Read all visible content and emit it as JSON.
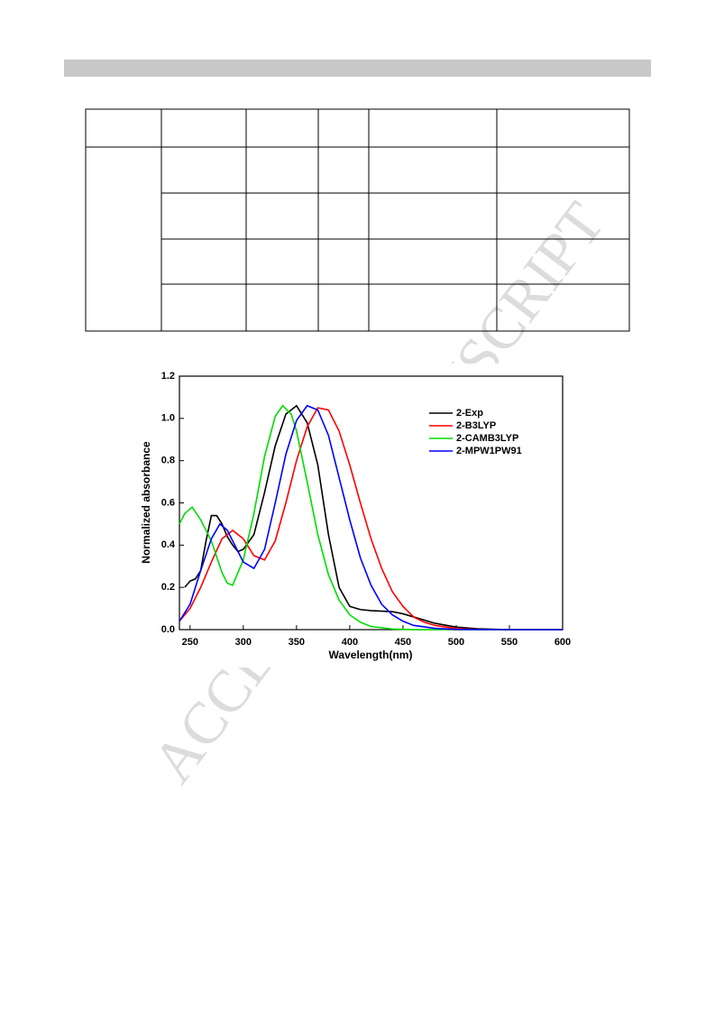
{
  "watermark": "ACCEPTED MANUSCRIPT",
  "chart_data": {
    "type": "line",
    "x_label": "Wavelength(nm)",
    "y_label": "Normalized absorbance",
    "xlim": [
      240,
      600
    ],
    "xticks": [
      250,
      300,
      350,
      400,
      450,
      500,
      550,
      600
    ],
    "ylim": [
      0,
      1.2
    ],
    "yticks": [
      {
        "value": 0,
        "label": "0.0"
      },
      0.2,
      0.4,
      0.6,
      0.8,
      {
        "value": 1,
        "label": "1.0"
      },
      1.2
    ],
    "legend": "top-right",
    "series": [
      {
        "name": "2-Exp",
        "color": "#000000",
        "x": [
          245,
          250,
          255,
          260,
          265,
          270,
          275,
          280,
          285,
          290,
          295,
          300,
          310,
          320,
          330,
          340,
          350,
          360,
          370,
          380,
          390,
          400,
          410,
          420,
          440,
          450,
          460,
          480,
          500,
          520,
          550,
          600
        ],
        "values": [
          0.2,
          0.23,
          0.24,
          0.28,
          0.42,
          0.54,
          0.54,
          0.5,
          0.44,
          0.4,
          0.37,
          0.38,
          0.45,
          0.65,
          0.87,
          1.02,
          1.06,
          0.98,
          0.78,
          0.45,
          0.2,
          0.11,
          0.095,
          0.09,
          0.085,
          0.075,
          0.06,
          0.03,
          0.012,
          0.004,
          0,
          0
        ]
      },
      {
        "name": "2-B3LYP",
        "color": "#ff0000",
        "x": [
          240,
          250,
          260,
          270,
          280,
          290,
          300,
          310,
          320,
          330,
          340,
          350,
          360,
          370,
          380,
          390,
          400,
          410,
          420,
          430,
          440,
          450,
          460,
          470,
          480,
          500,
          520,
          550,
          600
        ],
        "values": [
          0.04,
          0.1,
          0.2,
          0.32,
          0.43,
          0.47,
          0.43,
          0.35,
          0.33,
          0.42,
          0.6,
          0.8,
          0.96,
          1.05,
          1.04,
          0.94,
          0.78,
          0.6,
          0.43,
          0.29,
          0.18,
          0.11,
          0.06,
          0.035,
          0.02,
          0.005,
          0.001,
          0,
          0
        ]
      },
      {
        "name": "2-CAMB3LYP",
        "color": "#00dd00",
        "x": [
          240,
          245,
          252,
          260,
          270,
          280,
          285,
          290,
          300,
          310,
          320,
          330,
          337,
          345,
          350,
          360,
          370,
          380,
          390,
          400,
          410,
          420,
          440,
          460,
          600
        ],
        "values": [
          0.5,
          0.55,
          0.58,
          0.52,
          0.42,
          0.27,
          0.22,
          0.21,
          0.33,
          0.55,
          0.82,
          1.01,
          1.06,
          1.02,
          0.94,
          0.7,
          0.45,
          0.26,
          0.14,
          0.07,
          0.035,
          0.015,
          0.003,
          0,
          0
        ]
      },
      {
        "name": "2-MPW1PW91",
        "color": "#0000ff",
        "x": [
          240,
          250,
          260,
          270,
          278,
          285,
          290,
          300,
          310,
          320,
          330,
          340,
          350,
          360,
          370,
          380,
          390,
          400,
          410,
          420,
          430,
          440,
          450,
          460,
          480,
          500,
          550,
          600
        ],
        "values": [
          0.04,
          0.12,
          0.28,
          0.43,
          0.5,
          0.47,
          0.42,
          0.32,
          0.29,
          0.38,
          0.6,
          0.83,
          0.99,
          1.06,
          1.04,
          0.92,
          0.72,
          0.52,
          0.34,
          0.21,
          0.12,
          0.07,
          0.04,
          0.02,
          0.006,
          0.001,
          0,
          0
        ]
      }
    ]
  }
}
